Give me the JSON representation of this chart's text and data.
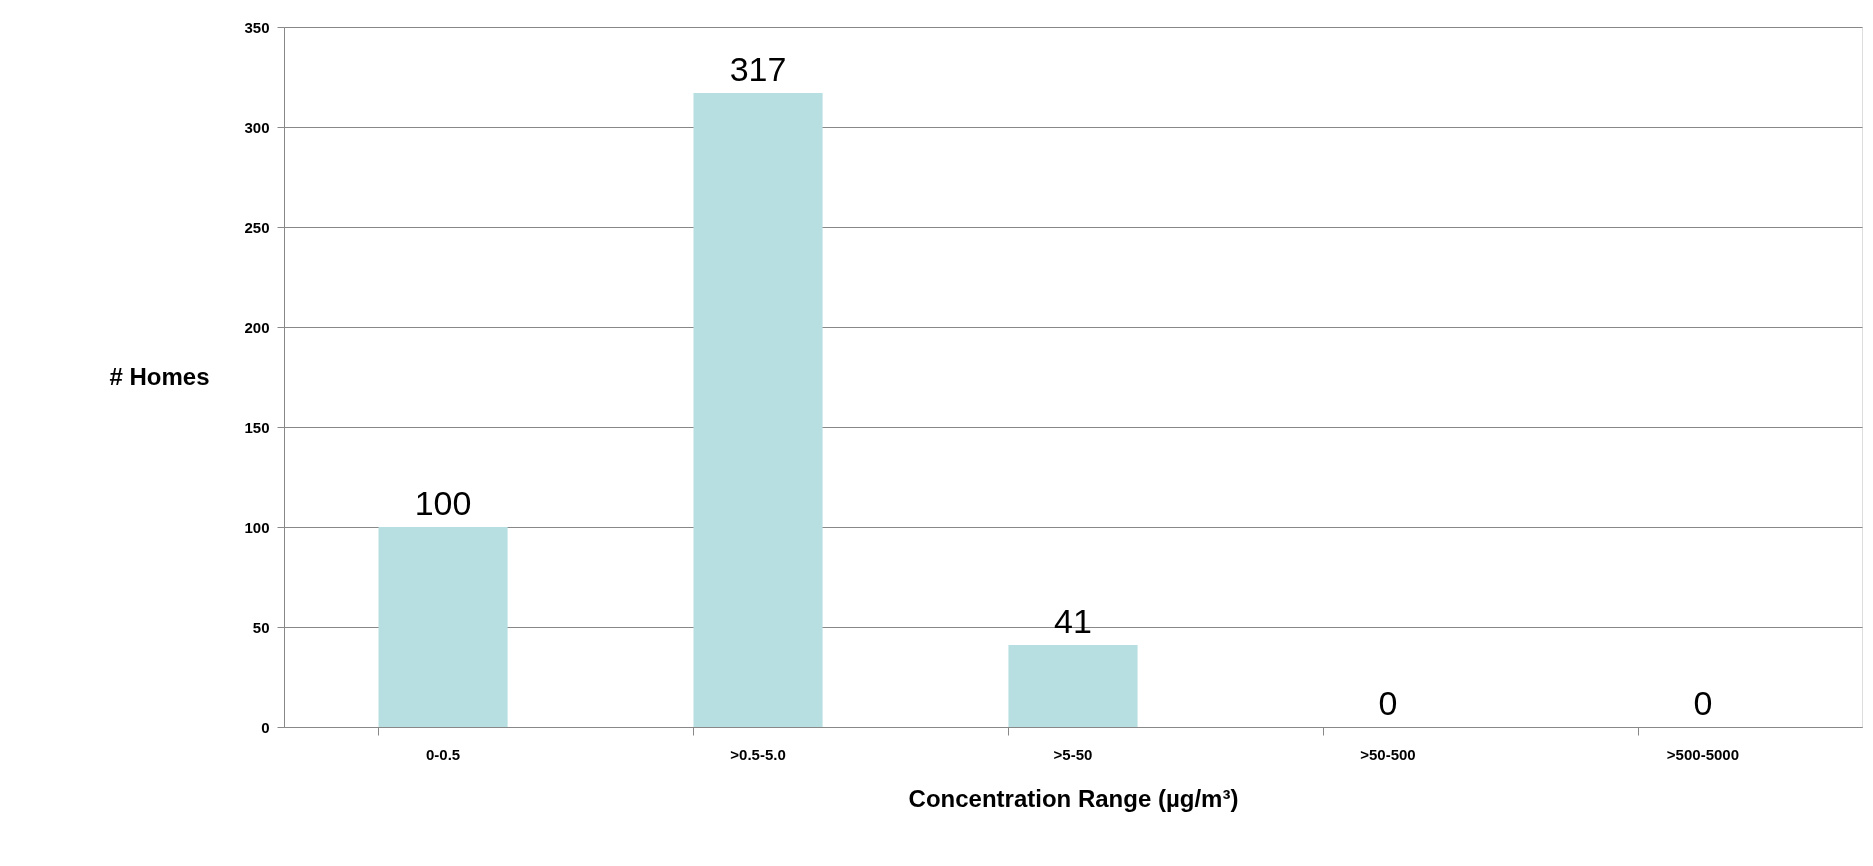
{
  "chart_data": {
    "type": "bar",
    "xlabel": "Concentration Range (µg/m³)",
    "ylabel": "# Homes",
    "categories": [
      "0-0.5",
      ">0.5-5.0",
      ">5-50",
      ">50-500",
      ">500-5000"
    ],
    "values": [
      100,
      317,
      41,
      0,
      0
    ],
    "color": "#b7dfe1",
    "ylim": [
      0,
      350
    ],
    "yticks": [
      0,
      50,
      100,
      150,
      200,
      250,
      300,
      350
    ],
    "grid": "y",
    "data_labels": true
  }
}
